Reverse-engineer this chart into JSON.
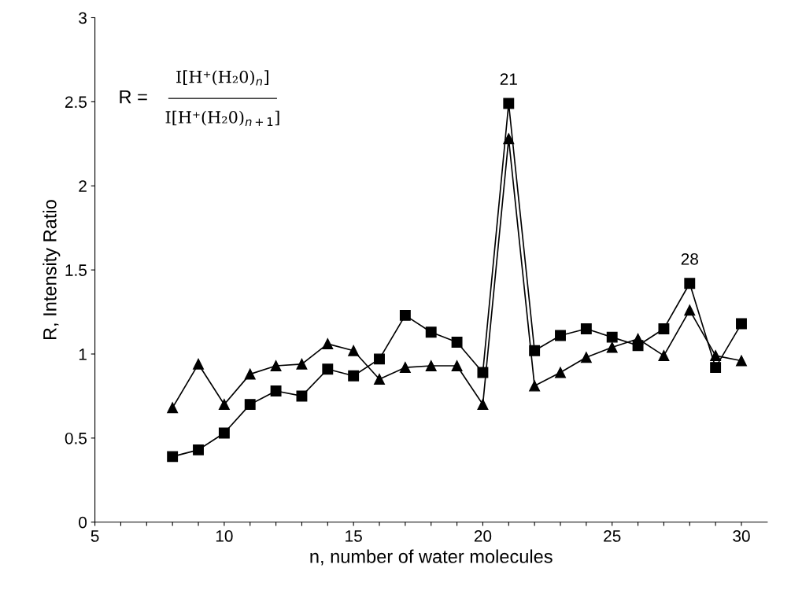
{
  "chart_data": {
    "type": "line",
    "xlabel": "n, number of water molecules",
    "ylabel": "R, Intensity Ratio",
    "x": [
      8,
      9,
      10,
      11,
      12,
      13,
      14,
      15,
      16,
      17,
      18,
      19,
      20,
      21,
      22,
      23,
      24,
      25,
      26,
      27,
      28,
      29,
      30
    ],
    "series": [
      {
        "color": "#000000",
        "marker": "square",
        "values": [
          0.39,
          0.43,
          0.53,
          0.7,
          0.78,
          0.75,
          0.91,
          0.87,
          0.97,
          1.23,
          1.13,
          1.07,
          0.89,
          2.49,
          1.02,
          1.11,
          1.15,
          1.1,
          1.05,
          1.15,
          1.42,
          0.92,
          1.18
        ]
      },
      {
        "color": "#000000",
        "marker": "triangle",
        "values": [
          0.68,
          0.94,
          0.7,
          0.88,
          0.93,
          0.94,
          1.06,
          1.02,
          0.85,
          0.92,
          0.93,
          0.93,
          0.7,
          2.28,
          0.81,
          0.89,
          0.98,
          1.04,
          1.09,
          0.99,
          1.26,
          0.99,
          0.96
        ]
      }
    ],
    "xlim": [
      5,
      31
    ],
    "ylim": [
      0,
      3
    ],
    "xticks": [
      5,
      {
        "value": 6,
        "label": null
      },
      {
        "value": 7,
        "label": null
      },
      {
        "value": 8,
        "label": null
      },
      {
        "value": 9,
        "label": null
      },
      10,
      {
        "value": 11,
        "label": null
      },
      {
        "value": 12,
        "label": null
      },
      {
        "value": 13,
        "label": null
      },
      {
        "value": 14,
        "label": null
      },
      15,
      {
        "value": 16,
        "label": null
      },
      {
        "value": 17,
        "label": null
      },
      {
        "value": 18,
        "label": null
      },
      {
        "value": 19,
        "label": null
      },
      20,
      {
        "value": 21,
        "label": null
      },
      {
        "value": 22,
        "label": null
      },
      {
        "value": 23,
        "label": null
      },
      {
        "value": 24,
        "label": null
      },
      25,
      {
        "value": 26,
        "label": null
      },
      {
        "value": 27,
        "label": null
      },
      {
        "value": 28,
        "label": null
      },
      {
        "value": 29,
        "label": null
      },
      30
    ],
    "yticks": [
      0,
      0.5,
      1,
      1.5,
      2,
      2.5,
      3
    ],
    "annotations": [
      {
        "text": "21",
        "x": 21,
        "y": 2.49
      },
      {
        "text": "28",
        "x": 28,
        "y": 1.42
      },
      "R =",
      "I[H⁺(H₂0)$_{n}$]",
      "I[H⁺(H₂0)$_{n+1}$]"
    ],
    "grid": false
  }
}
